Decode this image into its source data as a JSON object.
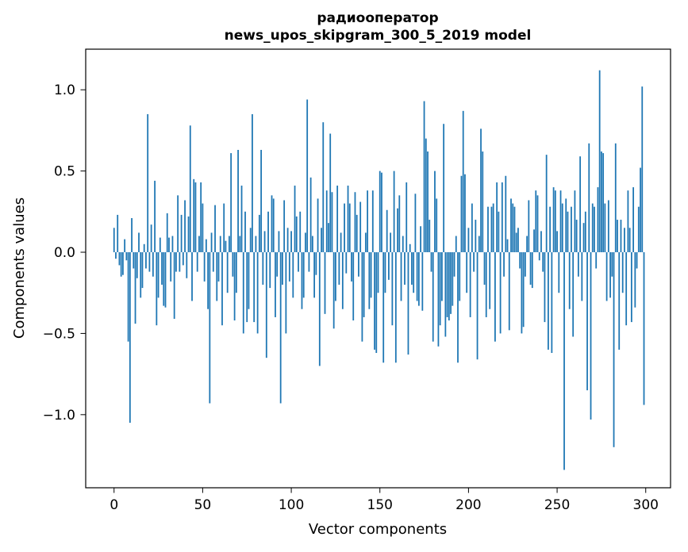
{
  "header": {
    "title_line1": "радиооператор",
    "title_line2": "news_upos_skipgram_300_5_2019 model"
  },
  "chart_data": {
    "type": "bar",
    "title": "радиооператор",
    "subtitle": "news_upos_skipgram_300_5_2019 model",
    "xlabel": "Vector components",
    "ylabel": "Components values",
    "n_components": 300,
    "x_start": 0,
    "xlim": [
      -16,
      314
    ],
    "ylim": [
      -1.45,
      1.25
    ],
    "xticks": [
      0,
      50,
      100,
      150,
      200,
      250,
      300
    ],
    "yticks": [
      -1.0,
      -0.5,
      0.0,
      0.5,
      1.0
    ],
    "grid": false,
    "legend_position": "none",
    "bar_color": "#1f77b4",
    "bar_rel_width": 0.8,
    "values": [
      0.15,
      -0.04,
      0.23,
      -0.08,
      -0.15,
      -0.14,
      0.08,
      -0.05,
      -0.55,
      -1.05,
      0.21,
      -0.1,
      -0.44,
      -0.16,
      0.12,
      -0.28,
      -0.22,
      0.05,
      -0.1,
      0.85,
      -0.12,
      0.17,
      -0.15,
      0.44,
      -0.45,
      -0.28,
      0.09,
      -0.2,
      -0.33,
      -0.34,
      0.24,
      0.09,
      -0.18,
      0.1,
      -0.41,
      -0.12,
      0.35,
      -0.12,
      0.23,
      -0.08,
      0.32,
      -0.16,
      0.22,
      0.78,
      -0.3,
      0.45,
      0.43,
      -0.12,
      0.1,
      0.43,
      0.3,
      -0.18,
      0.08,
      -0.35,
      -0.93,
      0.12,
      -0.12,
      0.29,
      -0.3,
      -0.18,
      0.1,
      -0.45,
      0.3,
      0.07,
      -0.25,
      0.1,
      0.61,
      -0.15,
      -0.42,
      -0.25,
      0.63,
      0.1,
      0.41,
      -0.5,
      0.25,
      -0.43,
      -0.35,
      0.15,
      0.85,
      -0.43,
      0.1,
      -0.5,
      0.23,
      0.63,
      -0.2,
      0.13,
      -0.65,
      0.25,
      -0.22,
      0.35,
      0.33,
      -0.4,
      -0.15,
      0.13,
      -0.93,
      -0.2,
      0.32,
      -0.5,
      0.15,
      -0.18,
      0.13,
      -0.28,
      0.41,
      0.22,
      -0.12,
      0.25,
      -0.35,
      -0.28,
      0.12,
      0.94,
      -0.12,
      0.46,
      0.1,
      -0.28,
      -0.14,
      0.33,
      -0.7,
      0.15,
      0.8,
      -0.38,
      0.38,
      0.18,
      0.73,
      0.37,
      -0.47,
      -0.3,
      0.41,
      -0.2,
      0.12,
      -0.35,
      0.3,
      -0.13,
      0.41,
      0.3,
      -0.18,
      -0.42,
      0.37,
      0.23,
      -0.15,
      0.31,
      -0.55,
      -0.4,
      0.12,
      0.38,
      -0.35,
      -0.28,
      0.38,
      -0.6,
      -0.62,
      -0.25,
      0.5,
      0.49,
      -0.68,
      -0.25,
      0.26,
      -0.17,
      0.12,
      -0.45,
      0.5,
      -0.68,
      0.27,
      0.35,
      -0.3,
      0.1,
      -0.2,
      0.43,
      -0.63,
      0.05,
      -0.2,
      -0.25,
      0.36,
      -0.3,
      -0.33,
      0.16,
      -0.36,
      0.93,
      0.7,
      0.62,
      0.2,
      -0.12,
      -0.55,
      0.5,
      0.33,
      -0.58,
      -0.45,
      -0.3,
      0.79,
      -0.52,
      -0.4,
      -0.42,
      -0.38,
      -0.33,
      -0.15,
      0.1,
      -0.68,
      -0.3,
      0.47,
      0.87,
      0.48,
      -0.25,
      0.15,
      -0.4,
      0.3,
      -0.12,
      0.2,
      -0.66,
      0.1,
      0.76,
      0.62,
      -0.2,
      -0.4,
      0.28,
      -0.35,
      0.28,
      0.3,
      -0.55,
      0.43,
      0.25,
      -0.5,
      0.43,
      -0.15,
      0.47,
      0.08,
      -0.48,
      0.33,
      0.3,
      0.28,
      0.12,
      0.15,
      -0.1,
      -0.5,
      -0.46,
      -0.15,
      0.1,
      0.32,
      -0.2,
      -0.22,
      0.14,
      0.38,
      0.35,
      -0.05,
      0.13,
      -0.12,
      -0.43,
      0.6,
      -0.6,
      0.28,
      -0.62,
      0.4,
      0.38,
      0.13,
      -0.25,
      0.38,
      0.3,
      -1.34,
      0.33,
      0.25,
      -0.35,
      0.28,
      -0.52,
      0.38,
      0.2,
      -0.15,
      0.59,
      -0.3,
      0.18,
      0.25,
      -0.85,
      0.67,
      -1.03,
      0.3,
      0.28,
      -0.1,
      0.4,
      1.12,
      0.62,
      0.61,
      0.3,
      -0.3,
      0.32,
      -0.28,
      -0.15,
      -1.2,
      0.67,
      0.2,
      -0.6,
      0.2,
      -0.25,
      0.15,
      -0.45,
      0.38,
      0.15,
      -0.43,
      0.4,
      -0.34,
      -0.1,
      0.28,
      0.52,
      1.02,
      -0.94
    ]
  }
}
